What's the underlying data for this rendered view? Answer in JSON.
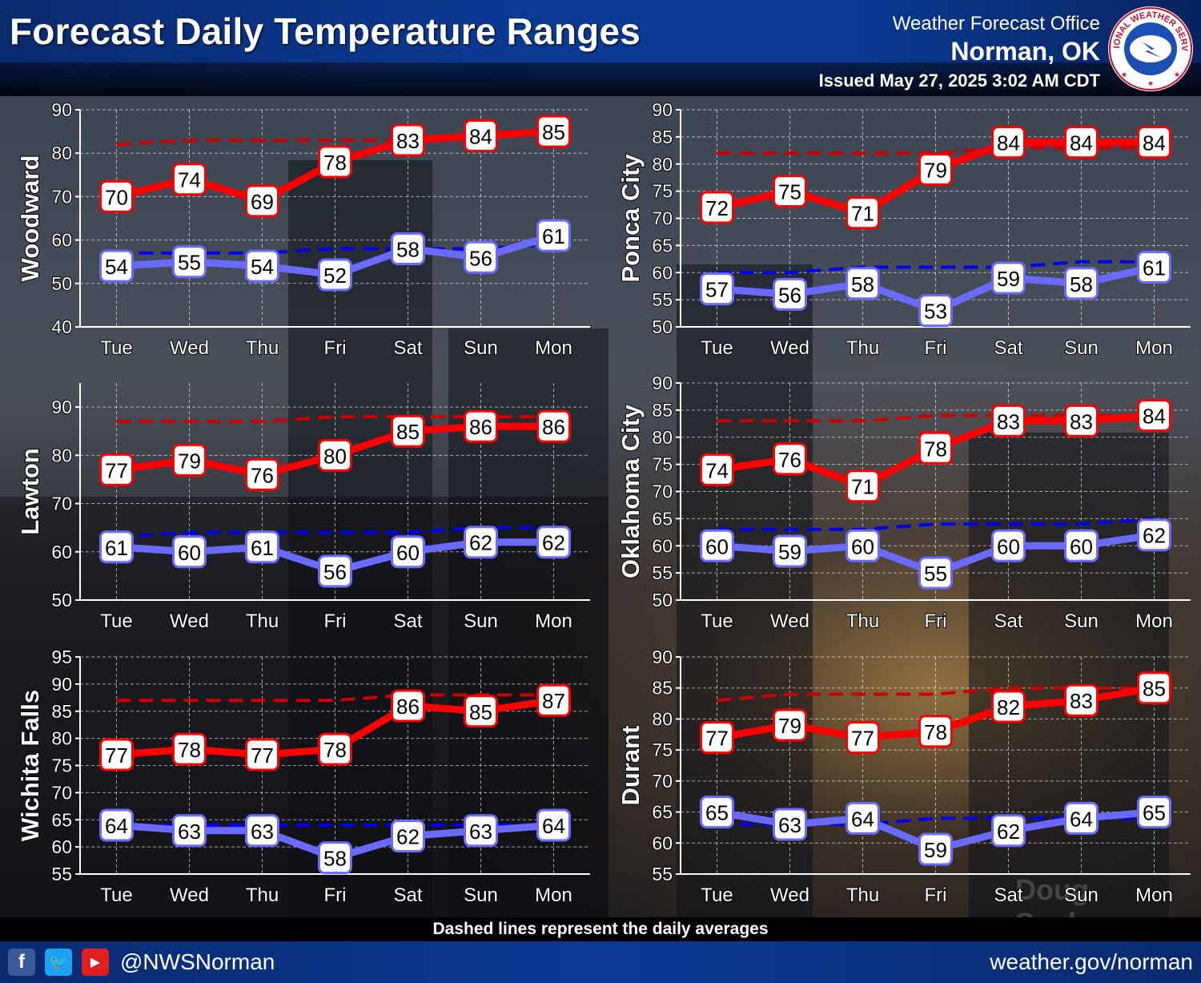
{
  "header": {
    "title": "Forecast Daily Temperature Ranges",
    "office": "Weather Forecast Office",
    "city": "Norman, OK",
    "issued": "Issued May 27, 2025 3:02 AM CDT"
  },
  "logo": {
    "text_top": "NATIONAL WEATHER SERVICE",
    "icon": "nws-logo-icon"
  },
  "colors": {
    "high": "#ff0000",
    "low": "#6a6aff",
    "high_avg": "#d00000",
    "low_avg": "#0000ee"
  },
  "watermark": "Doug Speleger",
  "footer": {
    "note": "Dashed lines represent the daily averages",
    "handle": "@NWSNorman",
    "site": "weather.gov/norman",
    "icons": [
      "facebook-icon",
      "twitter-icon",
      "youtube-icon"
    ]
  },
  "chart_data": [
    {
      "type": "line",
      "station": "Woodward",
      "categories": [
        "Tue",
        "Wed",
        "Thu",
        "Fri",
        "Sat",
        "Sun",
        "Mon"
      ],
      "ylim": [
        40,
        90
      ],
      "yticks": [
        40,
        50,
        60,
        70,
        80,
        90
      ],
      "highs": [
        70,
        74,
        69,
        78,
        83,
        84,
        85
      ],
      "lows": [
        54,
        55,
        54,
        52,
        58,
        56,
        61
      ],
      "avg_highs": [
        82,
        83,
        83,
        83,
        83,
        84,
        85
      ],
      "avg_lows": [
        57,
        57,
        57,
        58,
        58,
        58,
        59
      ],
      "grid": true
    },
    {
      "type": "line",
      "station": "Ponca City",
      "categories": [
        "Tue",
        "Wed",
        "Thu",
        "Fri",
        "Sat",
        "Sun",
        "Mon"
      ],
      "ylim": [
        50,
        90
      ],
      "yticks": [
        50,
        55,
        60,
        65,
        70,
        75,
        80,
        85,
        90
      ],
      "highs": [
        72,
        75,
        71,
        79,
        84,
        84,
        84
      ],
      "lows": [
        57,
        56,
        58,
        53,
        59,
        58,
        61
      ],
      "avg_highs": [
        82,
        82,
        82,
        82,
        83,
        83,
        83
      ],
      "avg_lows": [
        60,
        60,
        61,
        61,
        61,
        62,
        62
      ],
      "grid": true
    },
    {
      "type": "line",
      "station": "Lawton",
      "categories": [
        "Tue",
        "Wed",
        "Thu",
        "Fri",
        "Sat",
        "Sun",
        "Mon"
      ],
      "ylim": [
        50,
        95
      ],
      "yticks": [
        50,
        60,
        70,
        80,
        90
      ],
      "highs": [
        77,
        79,
        76,
        80,
        85,
        86,
        86
      ],
      "lows": [
        61,
        60,
        61,
        56,
        60,
        62,
        62
      ],
      "avg_highs": [
        87,
        87,
        87,
        88,
        88,
        88,
        88
      ],
      "avg_lows": [
        63,
        64,
        64,
        64,
        64,
        65,
        65
      ],
      "grid": true
    },
    {
      "type": "line",
      "station": "Oklahoma City",
      "categories": [
        "Tue",
        "Wed",
        "Thu",
        "Fri",
        "Sat",
        "Sun",
        "Mon"
      ],
      "ylim": [
        50,
        90
      ],
      "yticks": [
        50,
        55,
        60,
        65,
        70,
        75,
        80,
        85,
        90
      ],
      "highs": [
        74,
        76,
        71,
        78,
        83,
        83,
        84
      ],
      "lows": [
        60,
        59,
        60,
        55,
        60,
        60,
        62
      ],
      "avg_highs": [
        83,
        83,
        83,
        84,
        84,
        84,
        84
      ],
      "avg_lows": [
        63,
        63,
        63,
        64,
        64,
        64,
        65
      ],
      "grid": true
    },
    {
      "type": "line",
      "station": "Wichita Falls",
      "categories": [
        "Tue",
        "Wed",
        "Thu",
        "Fri",
        "Sat",
        "Sun",
        "Mon"
      ],
      "ylim": [
        55,
        95
      ],
      "yticks": [
        55,
        60,
        65,
        70,
        75,
        80,
        85,
        90,
        95
      ],
      "highs": [
        77,
        78,
        77,
        78,
        86,
        85,
        87
      ],
      "lows": [
        64,
        63,
        63,
        58,
        62,
        63,
        64
      ],
      "avg_highs": [
        87,
        87,
        87,
        87,
        88,
        88,
        88
      ],
      "avg_lows": [
        64,
        64,
        64,
        64,
        64,
        64,
        64
      ],
      "grid": true
    },
    {
      "type": "line",
      "station": "Durant",
      "categories": [
        "Tue",
        "Wed",
        "Thu",
        "Fri",
        "Sat",
        "Sun",
        "Mon"
      ],
      "ylim": [
        55,
        90
      ],
      "yticks": [
        55,
        60,
        65,
        70,
        75,
        80,
        85,
        90
      ],
      "highs": [
        77,
        79,
        77,
        78,
        82,
        83,
        85
      ],
      "lows": [
        65,
        63,
        64,
        59,
        62,
        64,
        65
      ],
      "avg_highs": [
        83,
        84,
        84,
        84,
        85,
        85,
        85
      ],
      "avg_lows": [
        63,
        63,
        63,
        64,
        64,
        64,
        64
      ],
      "grid": true
    }
  ]
}
